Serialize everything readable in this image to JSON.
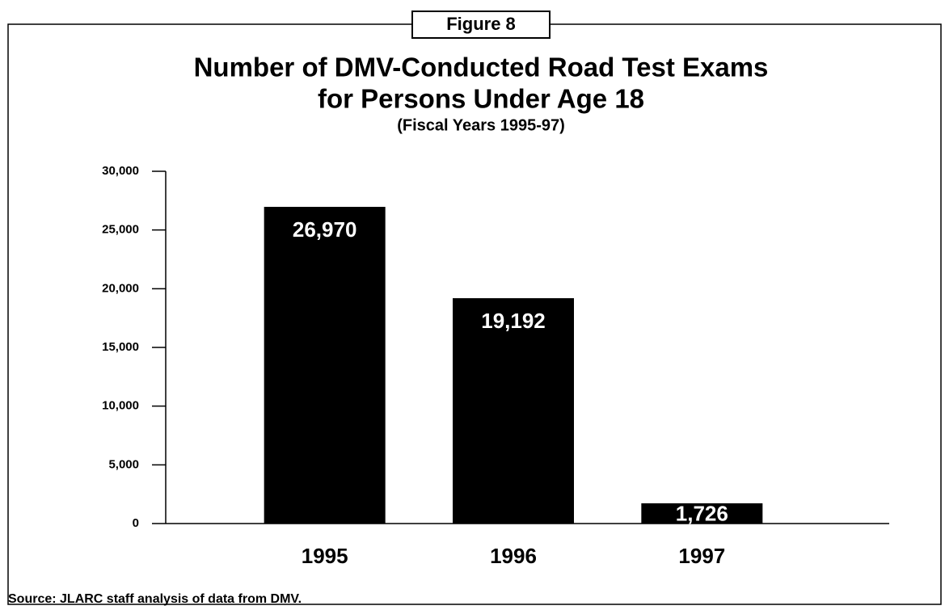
{
  "chart_data": {
    "type": "bar",
    "figure_label": "Figure 8",
    "title": "Number of DMV-Conducted Road Test Exams",
    "title_line2": "for Persons Under Age 18",
    "subtitle": "(Fiscal Years 1995-97)",
    "categories": [
      "1995",
      "1996",
      "1997"
    ],
    "values": [
      26970,
      19192,
      1726
    ],
    "value_labels": [
      "26,970",
      "19,192",
      "1,726"
    ],
    "color": "#000000",
    "ylim": [
      0,
      30000
    ],
    "yticks": [
      0,
      {
        "value": 5000,
        "label": "5,000"
      },
      {
        "value": 10000,
        "label": "10,000"
      },
      {
        "value": 15000,
        "label": "15,000"
      },
      {
        "value": 20000,
        "label": "20,000"
      },
      {
        "value": 25000,
        "label": "25,000"
      },
      {
        "value": 30000,
        "label": "30,000"
      }
    ],
    "source": "Source:  JLARC staff analysis of data from DMV."
  }
}
